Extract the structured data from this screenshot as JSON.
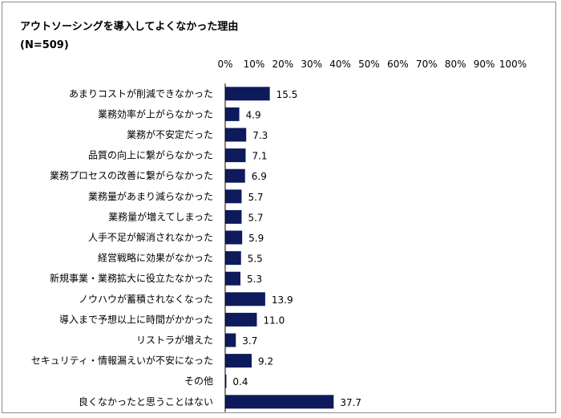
{
  "chart_data": {
    "type": "bar",
    "orientation": "horizontal",
    "title": "アウトソーシングを導入してよくなかった理由",
    "subtitle": "(N=509)",
    "xlim": [
      0,
      100
    ],
    "x_ticks": [
      "0%",
      "10%",
      "20%",
      "30%",
      "40%",
      "50%",
      "60%",
      "70%",
      "80%",
      "90%",
      "100%"
    ],
    "bar_color": "#0d1a5c",
    "categories": [
      "あまりコストが削減できなかった",
      "業務効率が上がらなかった",
      "業務が不安定だった",
      "品質の向上に繋がらなかった",
      "業務プロセスの改善に繋がらなかった",
      "業務量があまり減らなかった",
      "業務量が増えてしまった",
      "人手不足が解消されなかった",
      "経営戦略に効果がなかった",
      "新規事業・業務拡大に役立たなかった",
      "ノウハウが蓄積されなくなった",
      "導入まで予想以上に時間がかかった",
      "リストラが増えた",
      "セキュリティ・情報漏えいが不安になった",
      "その他",
      "良くなかったと思うことはない"
    ],
    "values": [
      15.5,
      4.9,
      7.3,
      7.1,
      6.9,
      5.7,
      5.7,
      5.9,
      5.5,
      5.3,
      13.9,
      11.0,
      3.7,
      9.2,
      0.4,
      37.7
    ],
    "value_labels": [
      "15.5",
      "4.9",
      "7.3",
      "7.1",
      "6.9",
      "5.7",
      "5.7",
      "5.9",
      "5.5",
      "5.3",
      "13.9",
      "11.0",
      "3.7",
      "9.2",
      "0.4",
      "37.7"
    ]
  }
}
